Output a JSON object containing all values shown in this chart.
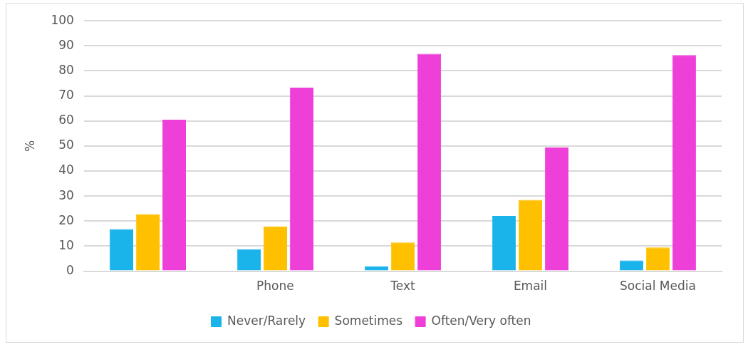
{
  "chart_data": {
    "type": "bar",
    "ylabel": "%",
    "categories": [
      null,
      "Phone",
      "Text",
      "Email",
      "Social Media"
    ],
    "series": [
      {
        "name": "Never/Rarely",
        "color": "#1ab4ea",
        "values": [
          16.8,
          8.8,
          1.9,
          22.1,
          4.3
        ]
      },
      {
        "name": "Sometimes",
        "color": "#ffc000",
        "values": [
          22.8,
          17.9,
          11.5,
          28.5,
          9.5
        ]
      },
      {
        "name": "Often/Very often",
        "color": "#ee3fd9",
        "values": [
          60.5,
          73.3,
          86.8,
          49.4,
          86.3
        ]
      }
    ],
    "ylim": [
      0,
      100
    ],
    "yticks": [
      0,
      10,
      20,
      30,
      40,
      50,
      60,
      70,
      80,
      90,
      100
    ],
    "grid": "y",
    "legend": "bottom"
  }
}
